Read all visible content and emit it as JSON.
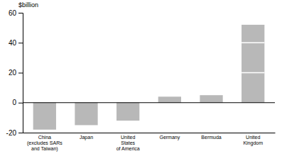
{
  "chart_data": {
    "type": "bar",
    "ylabel": "$billion",
    "categories": [
      "China\n(excludes SARs\nand Taiwan)",
      "Japan",
      "United\nStates\nof America",
      "Germany",
      "Bermuda",
      "United\nKingdom"
    ],
    "values": [
      -18,
      -15,
      -12,
      4,
      5,
      52
    ],
    "color": "#b8b8b8",
    "dividers": [
      20,
      40
    ],
    "ylim": [
      -20,
      60
    ],
    "yticks": [
      -20,
      0,
      20,
      40,
      60
    ],
    "grid": false
  }
}
